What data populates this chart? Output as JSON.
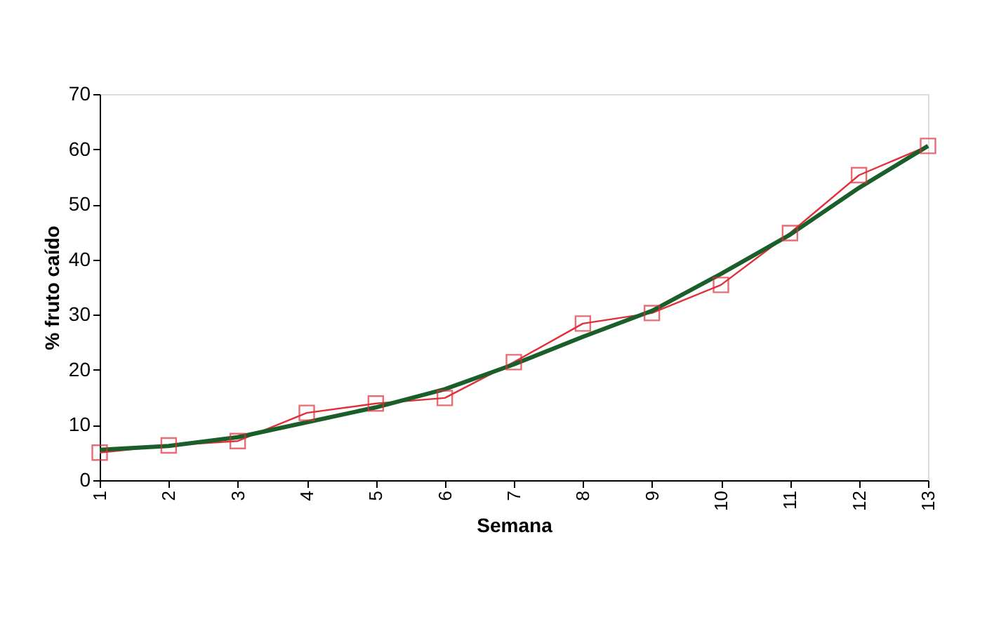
{
  "chart_data": {
    "type": "line",
    "xlabel": "Semana",
    "ylabel": "% fruto caído",
    "x": [
      1,
      2,
      3,
      4,
      5,
      6,
      7,
      8,
      9,
      10,
      11,
      12,
      13
    ],
    "xlim": [
      1,
      13
    ],
    "xticks": [
      1,
      2,
      3,
      4,
      5,
      6,
      7,
      8,
      9,
      10,
      11,
      12,
      13
    ],
    "ylim": [
      0,
      70
    ],
    "yticks": [
      0,
      10,
      20,
      30,
      40,
      50,
      60,
      70
    ],
    "grid": false,
    "series": [
      {
        "color": "#e0303a",
        "marker": "square",
        "values": [
          5.0,
          6.3,
          7.1,
          12.2,
          13.9,
          14.9,
          21.4,
          28.4,
          30.3,
          35.4,
          44.8,
          55.3,
          60.6
        ]
      },
      {
        "color": "#1a5e2a",
        "marker": "none",
        "values": [
          5.5,
          6.2,
          7.8,
          10.5,
          13.2,
          16.5,
          21,
          26,
          30.7,
          37.4,
          44.5,
          53,
          60.6
        ]
      }
    ]
  }
}
